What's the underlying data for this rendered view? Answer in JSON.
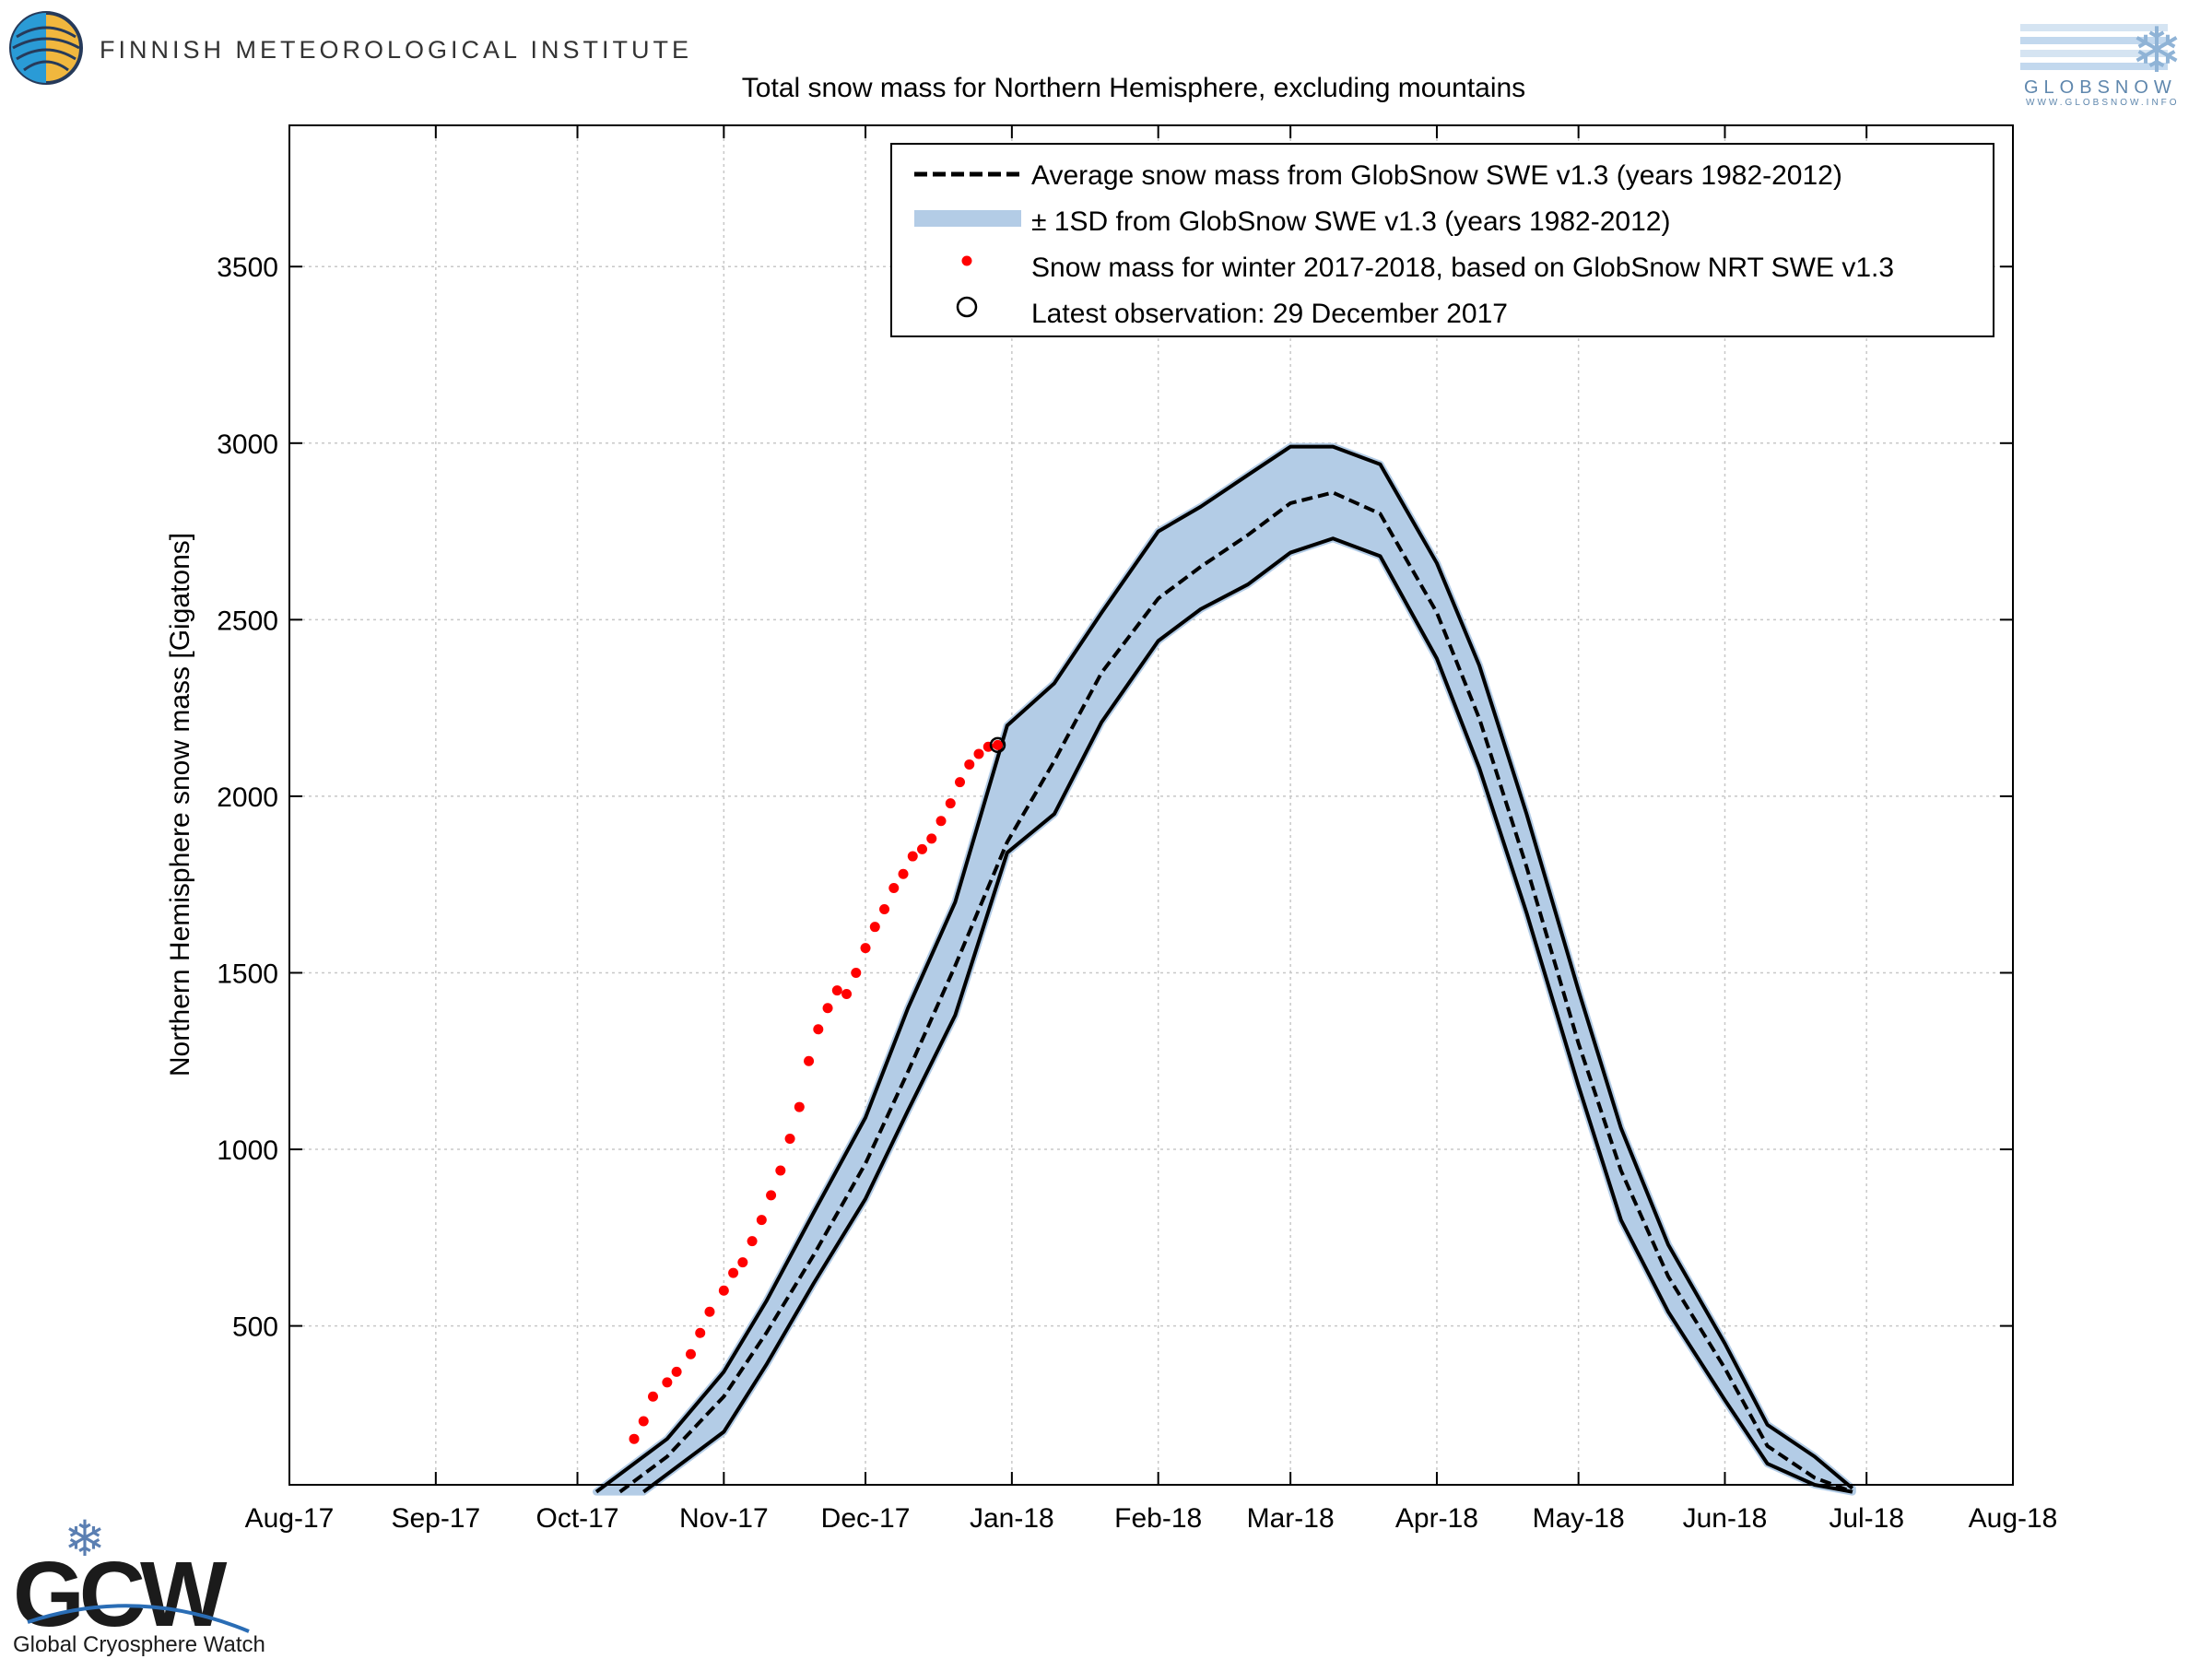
{
  "header": {
    "institute_name": "FINNISH METEOROLOGICAL INSTITUTE",
    "globsnow_logo_text": "GLOBSNOW",
    "globsnow_url": "WWW.GLOBSNOW.INFO"
  },
  "footer": {
    "gcw_logo_text": "GCW",
    "gcw_name": "Global Cryosphere Watch"
  },
  "colors": {
    "band_fill": "#b3cce6",
    "observation": "#ff0000",
    "lines": "#000000",
    "grid": "#c8c8c8"
  },
  "chart_data": {
    "type": "line",
    "title": "Total snow mass for Northern Hemisphere, excluding mountains",
    "xlabel": "",
    "ylabel": "Northern Hemisphere snow mass [Gigatons]",
    "x_tick_labels": [
      "Aug-17",
      "Sep-17",
      "Oct-17",
      "Nov-17",
      "Dec-17",
      "Jan-18",
      "Feb-18",
      "Mar-18",
      "Apr-18",
      "May-18",
      "Jun-18",
      "Jul-18",
      "Aug-18"
    ],
    "x_tick_dates": [
      "2017-08-01",
      "2017-09-01",
      "2017-10-01",
      "2017-11-01",
      "2017-12-01",
      "2018-01-01",
      "2018-02-01",
      "2018-03-01",
      "2018-04-01",
      "2018-05-01",
      "2018-06-01",
      "2018-07-01",
      "2018-08-01"
    ],
    "xlim": [
      "2017-08-01",
      "2018-08-01"
    ],
    "ylim": [
      50,
      3900
    ],
    "y_ticks": [
      500,
      1000,
      1500,
      2000,
      2500,
      3000,
      3500
    ],
    "grid": true,
    "legend_position": "top-right",
    "legend": [
      {
        "label": "Average snow mass from GlobSnow SWE v1.3 (years 1982-2012)",
        "style": "dashed-line"
      },
      {
        "label": "± 1SD from GlobSnow SWE v1.3 (years 1982-2012)",
        "style": "band"
      },
      {
        "label": "Snow mass for winter 2017-2018, based on GlobSnow NRT SWE v1.3",
        "style": "red-dot"
      },
      {
        "label": "Latest observation: 29 December 2017",
        "style": "open-circle"
      }
    ],
    "series": [
      {
        "name": "Average snow mass from GlobSnow SWE v1.3 (years 1982-2012)",
        "role": "mean",
        "x": [
          "2017-10-10",
          "2017-10-20",
          "2017-11-01",
          "2017-11-10",
          "2017-11-20",
          "2017-12-01",
          "2017-12-10",
          "2017-12-20",
          "2017-12-31",
          "2018-01-10",
          "2018-01-20",
          "2018-02-01",
          "2018-02-10",
          "2018-02-20",
          "2018-03-01",
          "2018-03-10",
          "2018-03-20",
          "2018-04-01",
          "2018-04-10",
          "2018-04-20",
          "2018-05-01",
          "2018-05-10",
          "2018-05-20",
          "2018-06-01",
          "2018-06-10",
          "2018-06-20",
          "2018-06-28"
        ],
        "values": [
          30,
          130,
          300,
          480,
          700,
          960,
          1220,
          1520,
          1870,
          2100,
          2350,
          2560,
          2650,
          2740,
          2830,
          2860,
          2800,
          2520,
          2220,
          1800,
          1300,
          940,
          640,
          380,
          160,
          70,
          30
        ]
      },
      {
        "name": "± 1SD upper",
        "role": "band-upper",
        "x": [
          "2017-10-05",
          "2017-10-20",
          "2017-11-01",
          "2017-11-10",
          "2017-11-20",
          "2017-12-01",
          "2017-12-10",
          "2017-12-20",
          "2017-12-31",
          "2018-01-10",
          "2018-01-20",
          "2018-02-01",
          "2018-02-10",
          "2018-02-20",
          "2018-03-01",
          "2018-03-10",
          "2018-03-20",
          "2018-04-01",
          "2018-04-10",
          "2018-04-20",
          "2018-05-01",
          "2018-05-10",
          "2018-05-20",
          "2018-06-01",
          "2018-06-10",
          "2018-06-20",
          "2018-06-28"
        ],
        "values": [
          30,
          180,
          370,
          570,
          820,
          1090,
          1400,
          1700,
          2200,
          2320,
          2520,
          2750,
          2820,
          2910,
          2990,
          2990,
          2940,
          2660,
          2370,
          1950,
          1450,
          1060,
          730,
          450,
          220,
          130,
          40
        ]
      },
      {
        "name": "± 1SD lower",
        "role": "band-lower",
        "x": [
          "2017-10-15",
          "2017-11-01",
          "2017-11-10",
          "2017-11-20",
          "2017-12-01",
          "2017-12-10",
          "2017-12-20",
          "2017-12-31",
          "2018-01-10",
          "2018-01-20",
          "2018-02-01",
          "2018-02-10",
          "2018-02-20",
          "2018-03-01",
          "2018-03-10",
          "2018-03-20",
          "2018-04-01",
          "2018-04-10",
          "2018-04-20",
          "2018-05-01",
          "2018-05-10",
          "2018-05-20",
          "2018-06-01",
          "2018-06-10",
          "2018-06-20",
          "2018-06-28"
        ],
        "values": [
          30,
          200,
          390,
          620,
          860,
          1110,
          1380,
          1840,
          1950,
          2210,
          2440,
          2530,
          2600,
          2690,
          2730,
          2680,
          2390,
          2080,
          1670,
          1180,
          800,
          540,
          290,
          110,
          50,
          30
        ]
      },
      {
        "name": "Snow mass for winter 2017-2018, based on GlobSnow NRT SWE v1.3",
        "role": "observations",
        "x": [
          "2017-10-13",
          "2017-10-15",
          "2017-10-17",
          "2017-10-20",
          "2017-10-22",
          "2017-10-25",
          "2017-10-27",
          "2017-10-29",
          "2017-11-01",
          "2017-11-03",
          "2017-11-05",
          "2017-11-07",
          "2017-11-09",
          "2017-11-11",
          "2017-11-13",
          "2017-11-15",
          "2017-11-17",
          "2017-11-19",
          "2017-11-21",
          "2017-11-23",
          "2017-11-25",
          "2017-11-27",
          "2017-11-29",
          "2017-12-01",
          "2017-12-03",
          "2017-12-05",
          "2017-12-07",
          "2017-12-09",
          "2017-12-11",
          "2017-12-13",
          "2017-12-15",
          "2017-12-17",
          "2017-12-19",
          "2017-12-21",
          "2017-12-23",
          "2017-12-25",
          "2017-12-27",
          "2017-12-29"
        ],
        "values": [
          180,
          230,
          300,
          340,
          370,
          420,
          480,
          540,
          600,
          650,
          680,
          740,
          800,
          870,
          940,
          1030,
          1120,
          1250,
          1340,
          1400,
          1450,
          1440,
          1500,
          1570,
          1630,
          1680,
          1740,
          1780,
          1830,
          1850,
          1880,
          1930,
          1980,
          2040,
          2090,
          2120,
          2140,
          2145
        ]
      }
    ],
    "latest_observation": {
      "x": "2017-12-29",
      "y": 2145
    }
  }
}
